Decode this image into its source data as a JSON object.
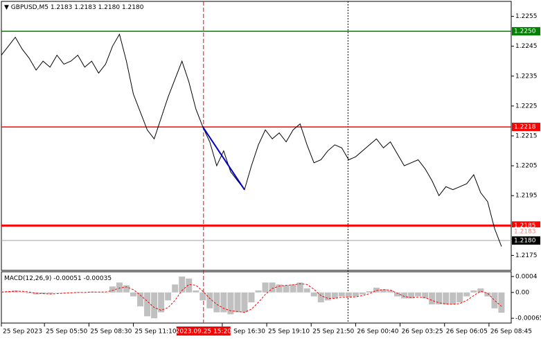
{
  "chart_data": [
    {
      "type": "line",
      "symbol": "GBPUSD,M5",
      "ohlc": [
        "1.2183",
        "1.2183",
        "1.2180",
        "1.2180"
      ],
      "xlim": [
        0,
        73.4
      ],
      "xticks": [
        {
          "value": 0,
          "label": "25 Sep 2023"
        },
        {
          "value": 6.2,
          "label": "25 Sep 05:50"
        },
        {
          "value": 12.6,
          "label": "25 Sep 08:30"
        },
        {
          "value": 19,
          "label": "25 Sep 11:10"
        },
        {
          "value": 31.8,
          "label": "25 Sep 16:30"
        },
        {
          "value": 38.2,
          "label": "25 Sep 19:10"
        },
        {
          "value": 44.6,
          "label": "25 Sep 21:50"
        },
        {
          "value": 51,
          "label": "26 Sep 00:40"
        },
        {
          "value": 57.4,
          "label": "26 Sep 03:25"
        },
        {
          "value": 63.8,
          "label": "26 Sep 06:05"
        },
        {
          "value": 70.2,
          "label": "26 Sep 08:45"
        }
      ],
      "ylim": [
        1.217,
        1.226
      ],
      "yticks": [
        1.2255,
        1.2245,
        1.2235,
        1.2225,
        1.2215,
        1.2205,
        1.2195,
        1.2175
      ],
      "series": [
        {
          "color": "#000000",
          "values": [
            1.2242,
            1.2245,
            1.2248,
            1.2244,
            1.2241,
            1.2237,
            1.224,
            1.2238,
            1.2242,
            1.2239,
            1.224,
            1.2242,
            1.2238,
            1.224,
            1.2236,
            1.2239,
            1.2245,
            1.2249,
            1.224,
            1.2229,
            1.2223,
            1.2217,
            1.2214,
            1.2221,
            1.2228,
            1.2234,
            1.224,
            1.2233,
            1.2224,
            1.2218,
            1.2213,
            1.2205,
            1.221,
            1.2203,
            1.22,
            1.2197,
            1.2205,
            1.2212,
            1.2217,
            1.2214,
            1.2216,
            1.2213,
            1.2217,
            1.2219,
            1.2212,
            1.2206,
            1.2207,
            1.221,
            1.2212,
            1.2211,
            1.2207,
            1.2208,
            1.221,
            1.2212,
            1.2214,
            1.2211,
            1.2213,
            1.2209,
            1.2205,
            1.2206,
            1.2207,
            1.2204,
            1.22,
            1.2195,
            1.2198,
            1.2197,
            1.2198,
            1.2199,
            1.2202,
            1.2196,
            1.2193,
            1.2184,
            1.2178
          ]
        }
      ],
      "levels": [
        {
          "value": 1.225,
          "label": "1.2250",
          "color": "#008000",
          "width": 1.5,
          "line": true
        },
        {
          "value": 1.2218,
          "label": "1.2218",
          "color": "#ff0000",
          "width": 1.5,
          "line": true
        },
        {
          "value": 1.2185,
          "label": "1.2185",
          "color": "#ff0000",
          "width": 3,
          "line": true
        },
        {
          "value": 1.2183,
          "label": "1.2183",
          "color": "#ff8080",
          "width": 1,
          "line": false
        },
        {
          "value": 1.218,
          "label": "1.2180",
          "color": "#000000",
          "width": 1,
          "line": true
        }
      ],
      "trendline": {
        "x": [
          29,
          35
        ],
        "y": [
          1.2218,
          1.2197
        ],
        "color": "#0000c8"
      },
      "vlines": [
        {
          "x": 29.1,
          "color": "#ff0000",
          "style": "dashed"
        },
        {
          "x": 49.9,
          "color": "#000000",
          "style": "dotted"
        }
      ],
      "cursor": {
        "x": 29.1,
        "label": "2023.09.25 15:20",
        "color": "#ff0000"
      }
    },
    {
      "type": "macd",
      "title": "MACD(12,26,9)",
      "ylim": [
        -0.00077,
        0.00052
      ],
      "yticks": [
        0.0004,
        {
          "value": 0,
          "label": "0.00"
        },
        -0.00065
      ],
      "histogram": {
        "color": "#c0c0c0",
        "values": [
          2e-05,
          3e-05,
          5e-05,
          2e-05,
          -2e-05,
          -5e-05,
          -4e-05,
          -4e-05,
          -1e-05,
          -1e-05,
          0,
          1e-05,
          0,
          2e-05,
          1e-05,
          0,
          0.00015,
          0.00025,
          0.00018,
          -0.0001,
          -0.00035,
          -0.0006,
          -0.00065,
          -0.0005,
          -0.0002,
          0.0002,
          0.0004,
          0.00035,
          5e-05,
          -0.0002,
          -0.0004,
          -0.0005,
          -0.0005,
          -0.00055,
          -0.0005,
          -0.0005,
          -0.00025,
          5e-05,
          0.00025,
          0.00025,
          0.0002,
          0.00018,
          0.0002,
          0.00025,
          0.0001,
          -0.0001,
          -0.00025,
          -0.0002,
          -0.00015,
          -0.0001,
          -0.00012,
          -0.0001,
          -5e-05,
          3e-05,
          0.00012,
          8e-05,
          5e-05,
          -0.0001,
          -0.00015,
          -0.00015,
          -0.0001,
          -0.00015,
          -0.0003,
          -0.0003,
          -0.0003,
          -0.0003,
          -0.00025,
          -0.0001,
          5e-05,
          0.0001,
          -0.0001,
          -0.0004,
          -0.00051
        ]
      },
      "signal": {
        "color": "#ff0000",
        "values": [
          1e-05,
          2e-05,
          3e-05,
          3e-05,
          1e-05,
          -2e-05,
          -3e-05,
          -4e-05,
          -3e-05,
          -2e-05,
          -1e-05,
          0,
          0,
          1e-05,
          1e-05,
          1e-05,
          5e-05,
          0.00011,
          0.00014,
          7e-05,
          -7e-05,
          -0.00022,
          -0.00038,
          -0.00045,
          -0.00038,
          -0.0002,
          5e-05,
          0.0002,
          0.00018,
          3e-05,
          -0.00015,
          -0.0003,
          -0.0004,
          -0.00046,
          -0.00048,
          -0.0005,
          -0.00042,
          -0.00025,
          -5e-05,
          0.0001,
          0.00016,
          0.00018,
          0.00019,
          0.00022,
          0.0002,
          8e-05,
          -8e-05,
          -0.00015,
          -0.00015,
          -0.00012,
          -0.00012,
          -0.00011,
          -8e-05,
          -3e-05,
          5e-05,
          7e-05,
          6e-05,
          -2e-05,
          -0.0001,
          -0.00013,
          -0.00012,
          -0.00013,
          -0.0002,
          -0.00026,
          -0.00029,
          -0.0003,
          -0.00028,
          -0.0002,
          -8e-05,
          3e-05,
          -2e-05,
          -0.0002,
          -0.00035
        ]
      }
    }
  ]
}
